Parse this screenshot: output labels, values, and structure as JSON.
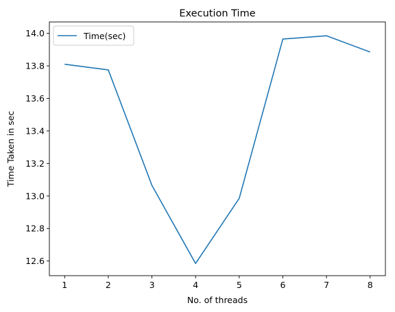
{
  "chart_data": {
    "type": "line",
    "title": "Execution Time",
    "xlabel": "No. of threads",
    "ylabel": "Time Taken in sec",
    "xlim": [
      0.65,
      8.35
    ],
    "ylim": [
      12.51,
      14.07
    ],
    "xticks": [
      1,
      2,
      3,
      4,
      5,
      6,
      7,
      8
    ],
    "yticks": [
      12.6,
      12.8,
      13.0,
      13.2,
      13.4,
      13.6,
      13.8,
      14.0
    ],
    "ytick_labels": [
      "12.6",
      "12.8",
      "13.0",
      "13.2",
      "13.4",
      "13.6",
      "13.8",
      "14.0"
    ],
    "grid": false,
    "legend": "upper-left",
    "series": [
      {
        "name": "Time(sec)",
        "color": "#1f77b4",
        "x": [
          1,
          2,
          3,
          4,
          5,
          6,
          7,
          8
        ],
        "y": [
          13.81,
          13.775,
          13.065,
          12.585,
          12.985,
          13.965,
          13.985,
          13.885
        ]
      }
    ]
  }
}
